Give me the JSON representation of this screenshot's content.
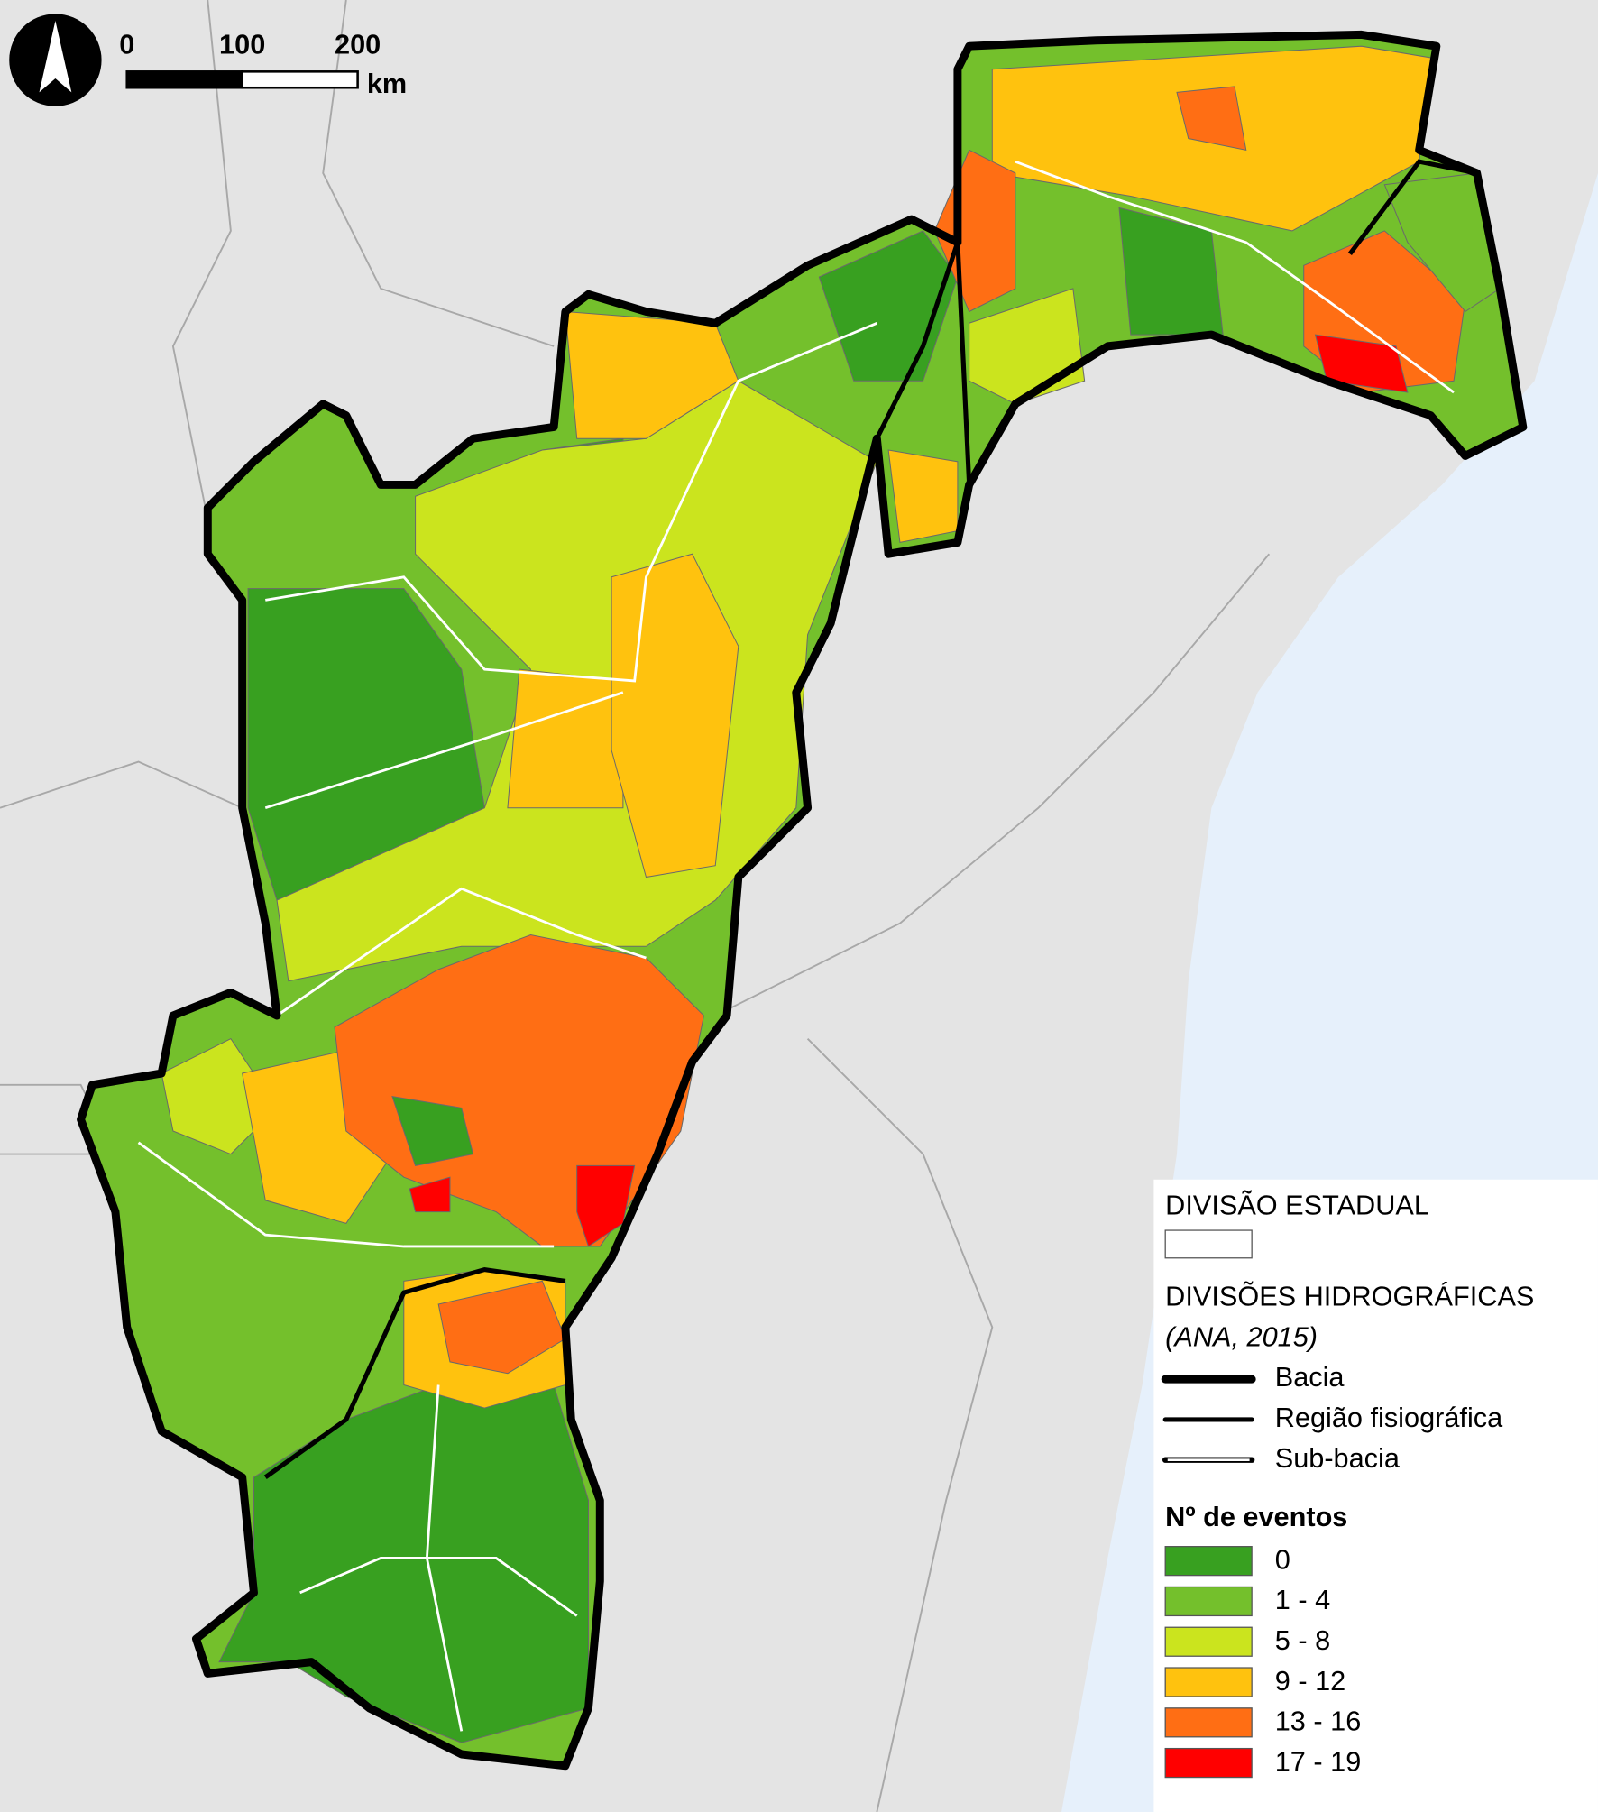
{
  "map": {
    "scale_bar": {
      "ticks": [
        0,
        100,
        200
      ],
      "unit": "km"
    },
    "legend": {
      "state_division": "DIVISÃO ESTADUAL",
      "hydro_title": "DIVISÕES HIDROGRÁFICAS",
      "hydro_source": "(ANA, 2015)",
      "lines": [
        {
          "label": "Bacia"
        },
        {
          "label": "Região fisiográfica"
        },
        {
          "label": "Sub-bacia"
        }
      ],
      "classes_title": "Nº de eventos",
      "classes": [
        {
          "label": "0",
          "color": "#38a020"
        },
        {
          "label": "1 - 4",
          "color": "#74c02c"
        },
        {
          "label": "5 - 8",
          "color": "#cbe41e"
        },
        {
          "label": "9 - 12",
          "color": "#ffc20e"
        },
        {
          "label": "13 - 16",
          "color": "#ff6e14"
        },
        {
          "label": "17 - 19",
          "color": "#ff0000"
        }
      ]
    }
  }
}
